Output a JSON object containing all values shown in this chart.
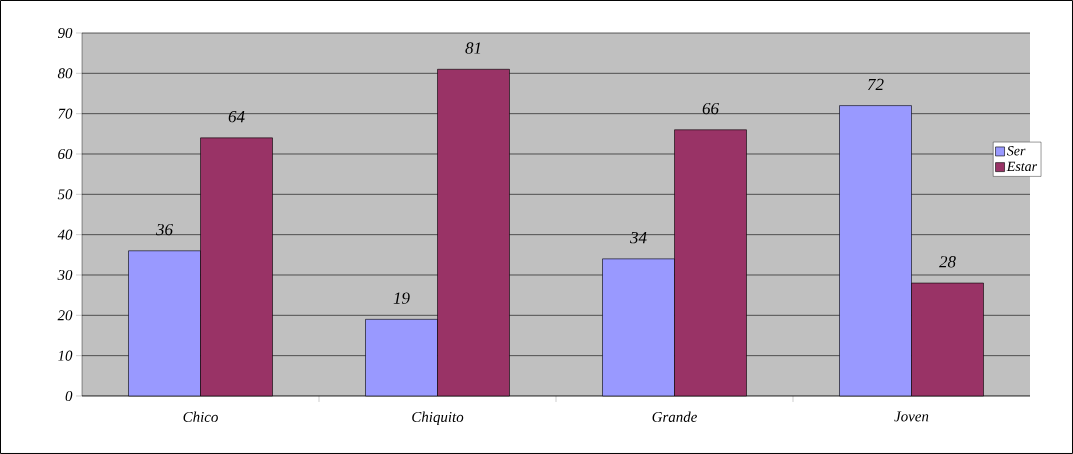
{
  "chart_data": {
    "type": "bar",
    "categories": [
      "Chico",
      "Chiquito",
      "Grande",
      "Joven"
    ],
    "series": [
      {
        "name": "Ser",
        "color": "#9999ff",
        "values": [
          36,
          19,
          34,
          72
        ]
      },
      {
        "name": "Estar",
        "color": "#993366",
        "values": [
          64,
          81,
          66,
          28
        ]
      }
    ],
    "ylim": [
      0,
      90
    ],
    "yticks": [
      0,
      10,
      20,
      30,
      40,
      50,
      60,
      70,
      80,
      90
    ],
    "grid": "y",
    "legend": "right",
    "data_labels": true
  }
}
